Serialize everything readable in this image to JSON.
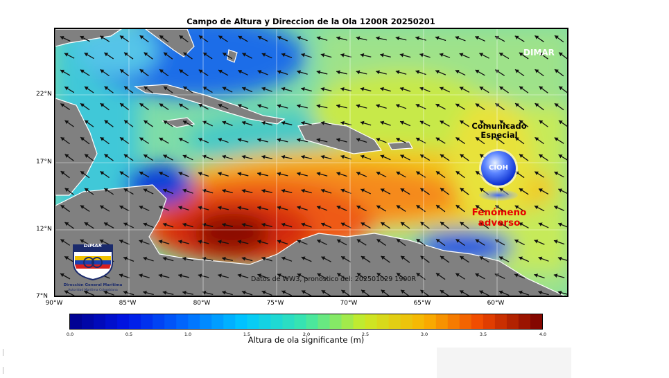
{
  "title": "Campo de Altura y Direccion de la Ola 1200R 20250201",
  "brand_corner": "DIMAR",
  "notice": {
    "line1": "Comunicado",
    "line2": "Especial",
    "badge": "CIOH",
    "alert_line1": "Fenómeno",
    "alert_line2": "adverso"
  },
  "source_note": "Datos de WW3, pronostico del: 202501029 1900R",
  "logo": {
    "wordmark": "DIMAR",
    "line1": "Dirección General Marítima",
    "line2": "Autoridad Marítima Colombiana"
  },
  "axes": {
    "lat_labels": [
      "22°N",
      "17°N",
      "12°N",
      "7°N"
    ],
    "lon_labels": [
      "90°W",
      "85°W",
      "80°W",
      "75°W",
      "70°W",
      "65°W",
      "60°W"
    ]
  },
  "colorbar": {
    "label": "Altura de ola significante (m)",
    "ticks": [
      "0.0",
      "0.5",
      "1.0",
      "1.5",
      "2.0",
      "2.5",
      "3.0",
      "3.5",
      "4.0"
    ],
    "min": 0.0,
    "max": 4.0
  },
  "colors": {
    "land": "#808080",
    "low": "#00008b",
    "high": "#7f0000",
    "alert_text": "#e60000"
  }
}
